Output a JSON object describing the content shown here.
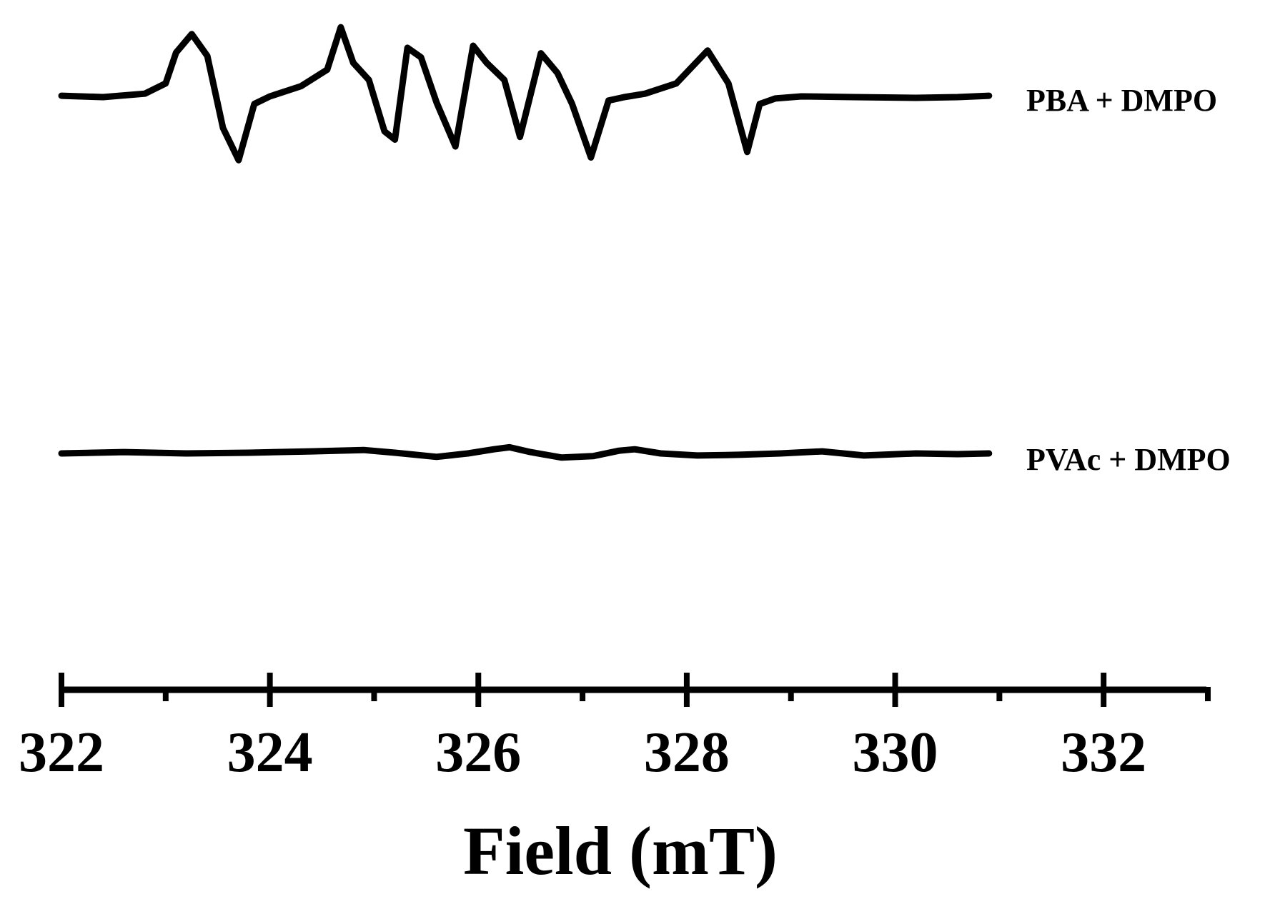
{
  "chart_data": {
    "type": "line",
    "xlabel": "Field (mT)",
    "ylabel": "",
    "xlim": [
      322,
      333
    ],
    "x_ticks_major": [
      322,
      324,
      326,
      328,
      330,
      332
    ],
    "x_tick_labels": [
      "322",
      "324",
      "326",
      "328",
      "330",
      "332"
    ],
    "x_ticks_minor": [
      323,
      325,
      327,
      329,
      331,
      333
    ],
    "y_axis_visible": false,
    "grid": false,
    "legend": "inline labels at right end of each trace",
    "series": [
      {
        "name": "PBA + DMPO",
        "x": [
          322.0,
          322.4,
          322.8,
          323.0,
          323.1,
          323.25,
          323.4,
          323.55,
          323.7,
          323.85,
          324.0,
          324.3,
          324.55,
          324.68,
          324.8,
          324.95,
          325.1,
          325.2,
          325.32,
          325.45,
          325.6,
          325.78,
          325.95,
          326.08,
          326.25,
          326.4,
          326.6,
          326.76,
          326.9,
          327.08,
          327.25,
          327.4,
          327.6,
          327.9,
          328.2,
          328.4,
          328.58,
          328.7,
          328.85,
          329.1,
          329.6,
          330.2,
          330.6,
          330.9
        ],
        "y": [
          0.02,
          0.0,
          0.05,
          0.2,
          0.65,
          0.92,
          0.6,
          -0.45,
          -0.92,
          -0.1,
          0.01,
          0.16,
          0.4,
          1.02,
          0.5,
          0.25,
          -0.5,
          -0.62,
          0.72,
          0.58,
          -0.08,
          -0.72,
          0.75,
          0.5,
          0.25,
          -0.58,
          0.64,
          0.35,
          -0.1,
          -0.88,
          -0.05,
          0.0,
          0.05,
          0.2,
          0.68,
          0.2,
          -0.8,
          -0.1,
          -0.02,
          0.01,
          0.0,
          -0.01,
          0.0,
          0.02
        ]
      },
      {
        "name": "PVAc + DMPO",
        "x": [
          322.0,
          322.6,
          323.2,
          323.8,
          324.4,
          324.9,
          325.2,
          325.6,
          325.9,
          326.15,
          326.3,
          326.5,
          326.8,
          327.1,
          327.35,
          327.5,
          327.75,
          328.1,
          328.5,
          328.9,
          329.3,
          329.7,
          330.2,
          330.6,
          330.9
        ],
        "y": [
          0.0,
          0.02,
          0.0,
          0.01,
          0.03,
          0.05,
          0.01,
          -0.05,
          0.0,
          0.06,
          0.09,
          0.02,
          -0.06,
          -0.04,
          0.04,
          0.06,
          0.0,
          -0.03,
          -0.02,
          0.0,
          0.03,
          -0.03,
          0.0,
          -0.01,
          0.0
        ]
      }
    ],
    "series_labels": [
      "PBA + DMPO",
      "PVAc + DMPO"
    ],
    "color": "#000000"
  }
}
